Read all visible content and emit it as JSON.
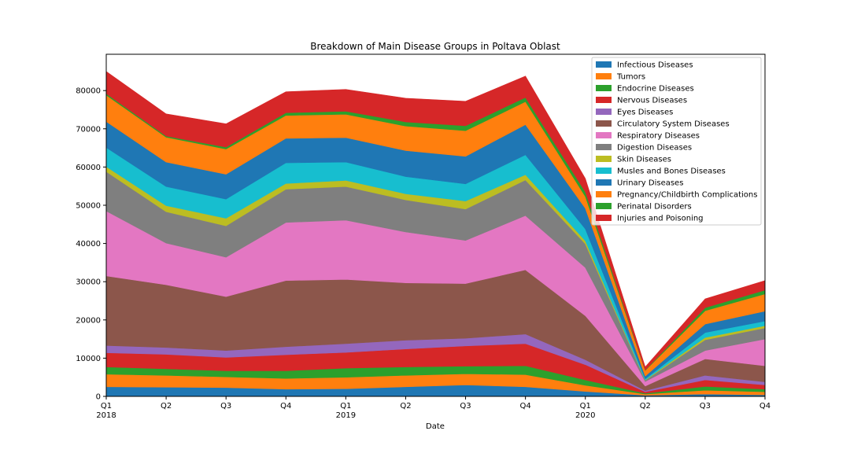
{
  "chart_data": {
    "type": "area",
    "stacked": true,
    "title": "Breakdown of Main Disease Groups in Poltava Oblast",
    "xlabel": "Date",
    "ylabel": "",
    "x_ticks": [
      {
        "quarter": "Q1",
        "year": "2018"
      },
      {
        "quarter": "Q2",
        "year": ""
      },
      {
        "quarter": "Q3",
        "year": ""
      },
      {
        "quarter": "Q4",
        "year": ""
      },
      {
        "quarter": "Q1",
        "year": "2019"
      },
      {
        "quarter": "Q2",
        "year": ""
      },
      {
        "quarter": "Q3",
        "year": ""
      },
      {
        "quarter": "Q4",
        "year": ""
      },
      {
        "quarter": "Q1",
        "year": "2020"
      },
      {
        "quarter": "Q2",
        "year": ""
      },
      {
        "quarter": "Q3",
        "year": ""
      },
      {
        "quarter": "Q4",
        "year": ""
      }
    ],
    "ylim": [
      0,
      89500
    ],
    "yticks": [
      0,
      10000,
      20000,
      30000,
      40000,
      50000,
      60000,
      70000,
      80000
    ],
    "legend_position": "upper-right",
    "grid": false,
    "series": [
      {
        "name": "Infectious Diseases",
        "color": "#1f77b4",
        "values": [
          2500,
          2400,
          2300,
          1900,
          2000,
          2500,
          3000,
          2500,
          1300,
          300,
          600,
          400
        ]
      },
      {
        "name": "Tumors",
        "color": "#ff7f0e",
        "values": [
          3300,
          3100,
          2800,
          2800,
          3000,
          3000,
          2900,
          3200,
          1600,
          300,
          1000,
          800
        ]
      },
      {
        "name": "Endocrine Diseases",
        "color": "#2ca02c",
        "values": [
          1900,
          1700,
          1600,
          2000,
          2400,
          2200,
          2000,
          2300,
          1400,
          200,
          1000,
          700
        ]
      },
      {
        "name": "Nervous Diseases",
        "color": "#d62728",
        "values": [
          3700,
          3800,
          3500,
          4200,
          4100,
          4700,
          5300,
          5800,
          4000,
          400,
          1700,
          1100
        ]
      },
      {
        "name": "Eyes Diseases",
        "color": "#9467bd",
        "values": [
          1900,
          1800,
          1800,
          2100,
          2300,
          2300,
          2000,
          2500,
          1300,
          300,
          1200,
          800
        ]
      },
      {
        "name": "Circulatory System Diseases",
        "color": "#8c564b",
        "values": [
          18200,
          16400,
          14100,
          17300,
          16800,
          15000,
          14300,
          16800,
          11500,
          1200,
          4300,
          4200
        ]
      },
      {
        "name": "Respiratory Diseases",
        "color": "#e377c2",
        "values": [
          17000,
          10900,
          10300,
          15200,
          15500,
          13300,
          11300,
          14200,
          12600,
          1200,
          2200,
          7000
        ]
      },
      {
        "name": "Digestion Diseases",
        "color": "#7f7f7f",
        "values": [
          10300,
          8200,
          8200,
          8700,
          8800,
          8400,
          8200,
          9300,
          6200,
          300,
          2800,
          2900
        ]
      },
      {
        "name": "Skin Diseases",
        "color": "#bcbd22",
        "values": [
          1300,
          1600,
          2000,
          1500,
          1600,
          1600,
          2100,
          1400,
          800,
          100,
          600,
          600
        ]
      },
      {
        "name": "Musles and Bones Diseases",
        "color": "#17becf",
        "values": [
          5000,
          5000,
          5000,
          5400,
          4800,
          4500,
          4500,
          5200,
          3100,
          300,
          1300,
          1200
        ]
      },
      {
        "name": "Urinary Diseases",
        "color": "#1f77b4",
        "values": [
          6800,
          6400,
          6500,
          6400,
          6400,
          6800,
          7200,
          7900,
          5400,
          700,
          2200,
          2600
        ]
      },
      {
        "name": "Pregnancy/Childbirth Complications",
        "color": "#ff7f0e",
        "values": [
          6900,
          6500,
          6600,
          6000,
          6100,
          6400,
          6700,
          6000,
          3100,
          1500,
          3500,
          4500
        ]
      },
      {
        "name": "Perinatal Disorders",
        "color": "#2ca02c",
        "values": [
          400,
          300,
          500,
          700,
          800,
          1100,
          1300,
          1100,
          1200,
          100,
          800,
          1000
        ]
      },
      {
        "name": "Injuries and Poisoning",
        "color": "#d62728",
        "values": [
          5800,
          5800,
          6100,
          5500,
          5700,
          6200,
          6400,
          5600,
          3500,
          800,
          2300,
          2500
        ]
      }
    ]
  }
}
